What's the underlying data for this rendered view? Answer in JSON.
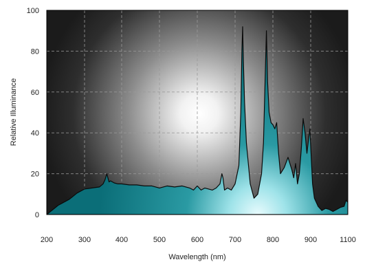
{
  "chart_data": {
    "type": "area",
    "xlabel": "Wavelength (nm)",
    "ylabel": "Relative Illuminance",
    "xlim": [
      200,
      1100
    ],
    "ylim": [
      0,
      100
    ],
    "x_ticks": [
      200,
      300,
      400,
      500,
      600,
      700,
      800,
      900,
      1100
    ],
    "y_ticks": [
      0,
      20,
      40,
      60,
      80,
      100
    ],
    "grid": true,
    "colors": {
      "background": "#1b1b1b",
      "glow_center": "#ffffff",
      "fill_dark": "#0b6e78",
      "fill_mid": "#2a9aa3",
      "fill_light": "#e8fbfd",
      "outline": "#0a0a0a"
    },
    "series": [
      {
        "x": [
          200,
          210,
          220,
          230,
          240,
          250,
          260,
          270,
          280,
          290,
          300,
          320,
          340,
          350,
          355,
          360,
          363,
          366,
          370,
          380,
          390,
          400,
          420,
          440,
          460,
          480,
          500,
          520,
          540,
          560,
          580,
          590,
          600,
          610,
          620,
          630,
          640,
          650,
          660,
          665,
          668,
          672,
          680,
          690,
          700,
          710,
          715,
          718,
          720,
          722,
          725,
          730,
          740,
          750,
          760,
          770,
          775,
          780,
          783,
          786,
          790,
          795,
          800,
          805,
          810,
          815,
          820,
          830,
          840,
          850,
          855,
          860,
          865,
          870,
          875,
          880,
          885,
          890,
          895,
          898,
          902,
          910,
          920,
          940,
          960,
          980,
          1000,
          1020,
          1040,
          1060,
          1080,
          1090,
          1100
        ],
        "y": [
          0,
          1.5,
          3,
          4.5,
          5.5,
          6.5,
          7.5,
          9,
          10.5,
          11.5,
          12.5,
          13,
          13.5,
          15,
          17,
          20,
          18,
          16,
          16.5,
          15.5,
          15,
          15,
          14.5,
          14.5,
          14,
          14,
          13,
          14,
          13.5,
          14,
          13,
          12,
          14,
          12,
          13,
          12.5,
          12,
          13,
          15,
          20,
          18,
          12,
          13,
          12,
          15,
          24,
          50,
          80,
          92,
          75,
          55,
          35,
          15,
          8,
          10,
          20,
          35,
          70,
          90,
          65,
          50,
          45,
          44,
          42,
          45,
          30,
          20,
          23,
          28,
          22,
          18,
          25,
          15,
          20,
          32,
          47,
          40,
          30,
          38,
          42,
          30,
          15,
          8,
          4,
          2,
          3,
          2.5,
          1.5,
          2.5,
          3.5,
          4,
          7,
          6
        ]
      }
    ]
  }
}
